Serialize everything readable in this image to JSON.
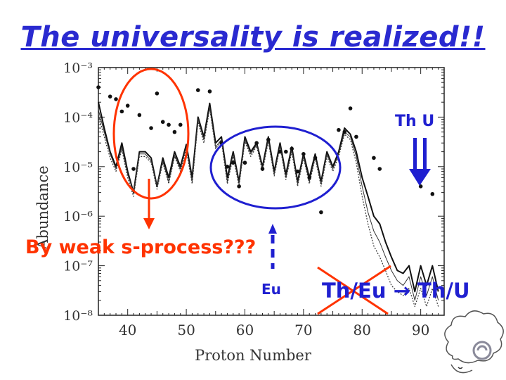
{
  "slide": {
    "title": "The universality is realized!!",
    "annotation_weak": "By weak s-process???",
    "label_thu": "Th U",
    "label_eu": "Eu",
    "label_ratio": "Th/Eu → Th/U",
    "colors": {
      "title": "#2a2ad0",
      "weak": "#ff3300",
      "blue": "#2020d0",
      "cross": "#ff3300"
    },
    "mascot": "sheep-icon"
  },
  "chart_data": {
    "type": "line",
    "xlabel": "Proton Number",
    "ylabel": "Abundance",
    "xlim": [
      35,
      94
    ],
    "ylim": [
      1e-08,
      0.001
    ],
    "log_y": true,
    "x_ticks": [
      "40",
      "50",
      "60",
      "70",
      "80",
      "90"
    ],
    "y_ticks": [
      "10⁻³",
      "10⁻⁴",
      "10⁻⁵",
      "10⁻⁶",
      "10⁻⁷",
      "10⁻⁸"
    ],
    "observed_points": [
      {
        "x": 35,
        "y": 0.0004
      },
      {
        "x": 37,
        "y": 0.00026
      },
      {
        "x": 38,
        "y": 0.00023
      },
      {
        "x": 39,
        "y": 0.00013
      },
      {
        "x": 40,
        "y": 0.00017
      },
      {
        "x": 41,
        "y": 9e-06
      },
      {
        "x": 42,
        "y": 0.00011
      },
      {
        "x": 44,
        "y": 6e-05
      },
      {
        "x": 45,
        "y": 0.0003
      },
      {
        "x": 46,
        "y": 8e-05
      },
      {
        "x": 47,
        "y": 7e-05
      },
      {
        "x": 48,
        "y": 5e-05
      },
      {
        "x": 49,
        "y": 7e-05
      },
      {
        "x": 52,
        "y": 0.00035
      },
      {
        "x": 54,
        "y": 0.00033
      },
      {
        "x": 56,
        "y": 3e-05
      },
      {
        "x": 57,
        "y": 1e-05
      },
      {
        "x": 58,
        "y": 1.2e-05
      },
      {
        "x": 59,
        "y": 4e-06
      },
      {
        "x": 60,
        "y": 1.2e-05
      },
      {
        "x": 62,
        "y": 3e-05
      },
      {
        "x": 63,
        "y": 9e-06
      },
      {
        "x": 64,
        "y": 3.5e-05
      },
      {
        "x": 66,
        "y": 2e-05
      },
      {
        "x": 67,
        "y": 2e-05
      },
      {
        "x": 68,
        "y": 2.3e-05
      },
      {
        "x": 69,
        "y": 8e-06
      },
      {
        "x": 70,
        "y": 1.8e-05
      },
      {
        "x": 71,
        "y": 6e-06
      },
      {
        "x": 72,
        "y": 1.5e-05
      },
      {
        "x": 73,
        "y": 1.2e-06
      },
      {
        "x": 76,
        "y": 5.5e-05
      },
      {
        "x": 77,
        "y": 5e-05
      },
      {
        "x": 78,
        "y": 0.00015
      },
      {
        "x": 79,
        "y": 4e-05
      },
      {
        "x": 82,
        "y": 1.5e-05
      },
      {
        "x": 83,
        "y": 9e-06
      },
      {
        "x": 90,
        "y": 4e-06
      },
      {
        "x": 92,
        "y": 2.8e-06
      }
    ],
    "series": [
      {
        "values": [
          {
            "x": 35,
            "y": 0.0002
          },
          {
            "x": 36,
            "y": 6e-05
          },
          {
            "x": 37,
            "y": 2e-05
          },
          {
            "x": 38,
            "y": 1e-05
          },
          {
            "x": 39,
            "y": 3e-05
          },
          {
            "x": 40,
            "y": 8e-06
          },
          {
            "x": 41,
            "y": 3e-06
          },
          {
            "x": 42,
            "y": 2e-05
          },
          {
            "x": 43,
            "y": 2e-05
          },
          {
            "x": 44,
            "y": 1.5e-05
          },
          {
            "x": 45,
            "y": 4e-06
          },
          {
            "x": 46,
            "y": 1.5e-05
          },
          {
            "x": 47,
            "y": 6e-06
          },
          {
            "x": 48,
            "y": 2e-05
          },
          {
            "x": 49,
            "y": 1e-05
          },
          {
            "x": 50,
            "y": 2.8e-05
          },
          {
            "x": 51,
            "y": 6e-06
          },
          {
            "x": 52,
            "y": 0.0001
          },
          {
            "x": 53,
            "y": 4e-05
          },
          {
            "x": 54,
            "y": 0.00019
          },
          {
            "x": 55,
            "y": 3e-05
          },
          {
            "x": 56,
            "y": 4e-05
          },
          {
            "x": 57,
            "y": 6e-06
          },
          {
            "x": 58,
            "y": 2e-05
          },
          {
            "x": 59,
            "y": 5e-06
          },
          {
            "x": 60,
            "y": 4e-05
          },
          {
            "x": 61,
            "y": 2e-05
          },
          {
            "x": 62,
            "y": 3e-05
          },
          {
            "x": 63,
            "y": 1e-05
          },
          {
            "x": 64,
            "y": 4e-05
          },
          {
            "x": 65,
            "y": 8e-06
          },
          {
            "x": 66,
            "y": 3e-05
          },
          {
            "x": 67,
            "y": 7e-06
          },
          {
            "x": 68,
            "y": 2.5e-05
          },
          {
            "x": 69,
            "y": 5e-06
          },
          {
            "x": 70,
            "y": 1.8e-05
          },
          {
            "x": 71,
            "y": 6e-06
          },
          {
            "x": 72,
            "y": 1.8e-05
          },
          {
            "x": 73,
            "y": 5e-06
          },
          {
            "x": 74,
            "y": 2e-05
          },
          {
            "x": 75,
            "y": 1e-05
          },
          {
            "x": 76,
            "y": 2e-05
          },
          {
            "x": 77,
            "y": 6e-05
          },
          {
            "x": 78,
            "y": 4.5e-05
          },
          {
            "x": 79,
            "y": 2e-05
          },
          {
            "x": 80,
            "y": 6e-06
          },
          {
            "x": 81,
            "y": 2.5e-06
          },
          {
            "x": 82,
            "y": 1e-06
          },
          {
            "x": 83,
            "y": 7e-07
          },
          {
            "x": 84,
            "y": 3e-07
          },
          {
            "x": 85,
            "y": 1.5e-07
          },
          {
            "x": 86,
            "y": 8e-08
          },
          {
            "x": 87,
            "y": 7e-08
          },
          {
            "x": 88,
            "y": 1e-07
          },
          {
            "x": 89,
            "y": 3e-08
          },
          {
            "x": 90,
            "y": 1e-07
          },
          {
            "x": 91,
            "y": 4e-08
          },
          {
            "x": 92,
            "y": 1e-07
          },
          {
            "x": 93,
            "y": 3e-08
          }
        ]
      },
      {
        "values": [
          {
            "x": 35,
            "y": 0.00014
          },
          {
            "x": 36,
            "y": 5e-05
          },
          {
            "x": 37,
            "y": 1.8e-05
          },
          {
            "x": 38,
            "y": 9e-06
          },
          {
            "x": 39,
            "y": 2.5e-05
          },
          {
            "x": 40,
            "y": 7e-06
          },
          {
            "x": 41,
            "y": 3e-06
          },
          {
            "x": 42,
            "y": 1.8e-05
          },
          {
            "x": 43,
            "y": 1.8e-05
          },
          {
            "x": 44,
            "y": 1.3e-05
          },
          {
            "x": 45,
            "y": 4e-06
          },
          {
            "x": 46,
            "y": 1.3e-05
          },
          {
            "x": 47,
            "y": 5e-06
          },
          {
            "x": 48,
            "y": 1.7e-05
          },
          {
            "x": 49,
            "y": 9e-06
          },
          {
            "x": 50,
            "y": 2.5e-05
          },
          {
            "x": 51,
            "y": 5e-06
          },
          {
            "x": 52,
            "y": 9e-05
          },
          {
            "x": 53,
            "y": 3.5e-05
          },
          {
            "x": 54,
            "y": 0.00016
          },
          {
            "x": 55,
            "y": 2.5e-05
          },
          {
            "x": 56,
            "y": 3.5e-05
          },
          {
            "x": 57,
            "y": 5e-06
          },
          {
            "x": 58,
            "y": 1.8e-05
          },
          {
            "x": 59,
            "y": 4.5e-06
          },
          {
            "x": 60,
            "y": 3.5e-05
          },
          {
            "x": 61,
            "y": 1.8e-05
          },
          {
            "x": 62,
            "y": 2.8e-05
          },
          {
            "x": 63,
            "y": 9e-06
          },
          {
            "x": 64,
            "y": 3.5e-05
          },
          {
            "x": 65,
            "y": 7e-06
          },
          {
            "x": 66,
            "y": 2.7e-05
          },
          {
            "x": 67,
            "y": 6e-06
          },
          {
            "x": 68,
            "y": 2.2e-05
          },
          {
            "x": 69,
            "y": 4.5e-06
          },
          {
            "x": 70,
            "y": 1.6e-05
          },
          {
            "x": 71,
            "y": 5e-06
          },
          {
            "x": 72,
            "y": 1.6e-05
          },
          {
            "x": 73,
            "y": 4.5e-06
          },
          {
            "x": 74,
            "y": 1.8e-05
          },
          {
            "x": 75,
            "y": 9e-06
          },
          {
            "x": 76,
            "y": 1.8e-05
          },
          {
            "x": 77,
            "y": 5e-05
          },
          {
            "x": 78,
            "y": 4e-05
          },
          {
            "x": 79,
            "y": 1.6e-05
          },
          {
            "x": 80,
            "y": 4e-06
          },
          {
            "x": 81,
            "y": 1.2e-06
          },
          {
            "x": 82,
            "y": 5e-07
          },
          {
            "x": 83,
            "y": 3e-07
          },
          {
            "x": 84,
            "y": 1.5e-07
          },
          {
            "x": 85,
            "y": 8e-08
          },
          {
            "x": 86,
            "y": 5e-08
          },
          {
            "x": 87,
            "y": 4e-08
          },
          {
            "x": 88,
            "y": 6e-08
          },
          {
            "x": 89,
            "y": 2e-08
          },
          {
            "x": 90,
            "y": 6e-08
          },
          {
            "x": 91,
            "y": 2.5e-08
          },
          {
            "x": 92,
            "y": 6e-08
          },
          {
            "x": 93,
            "y": 2e-08
          }
        ]
      },
      {
        "values": [
          {
            "x": 35,
            "y": 0.00011
          },
          {
            "x": 36,
            "y": 4e-05
          },
          {
            "x": 37,
            "y": 1.5e-05
          },
          {
            "x": 38,
            "y": 8e-06
          },
          {
            "x": 39,
            "y": 2.2e-05
          },
          {
            "x": 40,
            "y": 6e-06
          },
          {
            "x": 41,
            "y": 2.5e-06
          },
          {
            "x": 42,
            "y": 1.6e-05
          },
          {
            "x": 43,
            "y": 1.6e-05
          },
          {
            "x": 44,
            "y": 1.2e-05
          },
          {
            "x": 45,
            "y": 3.5e-06
          },
          {
            "x": 46,
            "y": 1.2e-05
          },
          {
            "x": 47,
            "y": 4.5e-06
          },
          {
            "x": 48,
            "y": 1.6e-05
          },
          {
            "x": 49,
            "y": 8e-06
          },
          {
            "x": 50,
            "y": 2.2e-05
          },
          {
            "x": 51,
            "y": 4.5e-06
          },
          {
            "x": 52,
            "y": 8e-05
          },
          {
            "x": 53,
            "y": 3e-05
          },
          {
            "x": 54,
            "y": 0.00015
          },
          {
            "x": 55,
            "y": 2.3e-05
          },
          {
            "x": 56,
            "y": 3.2e-05
          },
          {
            "x": 57,
            "y": 4.5e-06
          },
          {
            "x": 58,
            "y": 1.6e-05
          },
          {
            "x": 59,
            "y": 4e-06
          },
          {
            "x": 60,
            "y": 3.2e-05
          },
          {
            "x": 61,
            "y": 1.6e-05
          },
          {
            "x": 62,
            "y": 2.6e-05
          },
          {
            "x": 63,
            "y": 8e-06
          },
          {
            "x": 64,
            "y": 3.2e-05
          },
          {
            "x": 65,
            "y": 6.5e-06
          },
          {
            "x": 66,
            "y": 2.5e-05
          },
          {
            "x": 67,
            "y": 5.5e-06
          },
          {
            "x": 68,
            "y": 2e-05
          },
          {
            "x": 69,
            "y": 4e-06
          },
          {
            "x": 70,
            "y": 1.5e-05
          },
          {
            "x": 71,
            "y": 4.5e-06
          },
          {
            "x": 72,
            "y": 1.5e-05
          },
          {
            "x": 73,
            "y": 4e-06
          },
          {
            "x": 74,
            "y": 1.6e-05
          },
          {
            "x": 75,
            "y": 8e-06
          },
          {
            "x": 76,
            "y": 1.6e-05
          },
          {
            "x": 77,
            "y": 4.5e-05
          },
          {
            "x": 78,
            "y": 3.5e-05
          },
          {
            "x": 79,
            "y": 1.2e-05
          },
          {
            "x": 80,
            "y": 2.5e-06
          },
          {
            "x": 81,
            "y": 7e-07
          },
          {
            "x": 82,
            "y": 2.5e-07
          },
          {
            "x": 83,
            "y": 1.5e-07
          },
          {
            "x": 84,
            "y": 8e-08
          },
          {
            "x": 85,
            "y": 4e-08
          },
          {
            "x": 86,
            "y": 3e-08
          },
          {
            "x": 87,
            "y": 2.5e-08
          },
          {
            "x": 88,
            "y": 3.5e-08
          },
          {
            "x": 89,
            "y": 1.5e-08
          },
          {
            "x": 90,
            "y": 3.5e-08
          },
          {
            "x": 91,
            "y": 1.5e-08
          },
          {
            "x": 92,
            "y": 3.5e-08
          },
          {
            "x": 93,
            "y": 1.5e-08
          }
        ]
      }
    ]
  }
}
